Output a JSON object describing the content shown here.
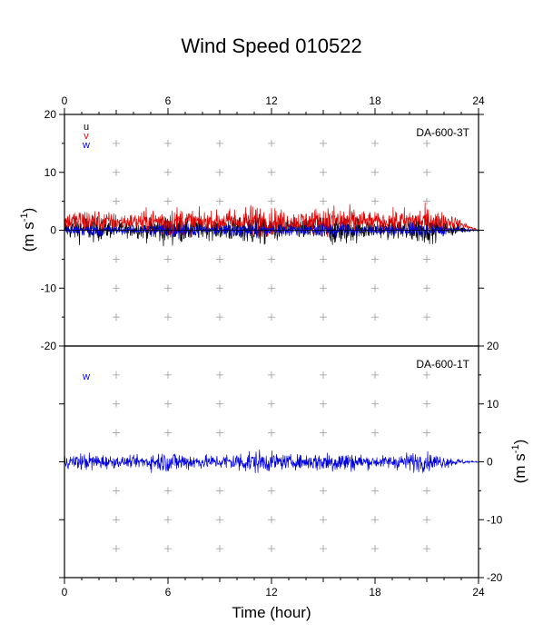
{
  "chart_data": {
    "type": "line",
    "title": "Wind Speed 010522",
    "xlabel": "Time (hour)",
    "ylabel_main": "(m s",
    "ylabel_sup": "-1",
    "ylabel_close": ")",
    "xlim": [
      0,
      24
    ],
    "x_ticks": [
      0,
      6,
      12,
      18,
      24
    ],
    "grid": "plus-markers",
    "colors": {
      "u": "#000000",
      "v": "#e00000",
      "w": "#0000dd"
    },
    "panels": [
      {
        "station": "DA-600-3T",
        "ylim": [
          -20,
          20
        ],
        "y_ticks": [
          -20,
          -10,
          0,
          10,
          20
        ],
        "y_tick_labels": [
          "-20",
          "-10",
          "0",
          "10",
          "20"
        ],
        "y_axis_side": "left",
        "legend": [
          "u",
          "v",
          "w"
        ],
        "series": [
          {
            "name": "u",
            "approx_mean": 0.2,
            "approx_range": [
              -4,
              2
            ]
          },
          {
            "name": "v",
            "approx_mean": 1.5,
            "approx_range": [
              -1,
              5
            ]
          },
          {
            "name": "w",
            "approx_mean": 0.0,
            "approx_range": [
              -1.5,
              1.5
            ]
          }
        ]
      },
      {
        "station": "DA-600-1T",
        "ylim": [
          -20,
          20
        ],
        "y_ticks": [
          -20,
          -10,
          0,
          10,
          20
        ],
        "y_tick_labels": [
          "-20",
          "-10",
          "0",
          "10",
          "20"
        ],
        "y_axis_side": "right",
        "legend": [
          "w"
        ],
        "series": [
          {
            "name": "w",
            "approx_mean": 0.0,
            "approx_range": [
              -2,
              2
            ]
          }
        ]
      }
    ]
  }
}
